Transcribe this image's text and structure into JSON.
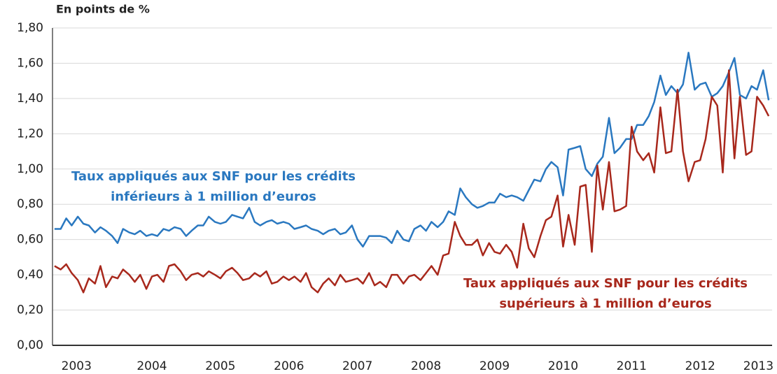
{
  "chart_data": {
    "type": "line",
    "y_label": "En points de %",
    "x": [
      2003.08,
      2003.17,
      2003.25,
      2003.33,
      2003.42,
      2003.5,
      2003.58,
      2003.67,
      2003.75,
      2003.83,
      2003.92,
      2004,
      2004.08,
      2004.17,
      2004.25,
      2004.33,
      2004.42,
      2004.5,
      2004.58,
      2004.67,
      2004.75,
      2004.83,
      2004.92,
      2005,
      2005.08,
      2005.17,
      2005.25,
      2005.33,
      2005.42,
      2005.5,
      2005.58,
      2005.67,
      2005.75,
      2005.83,
      2005.92,
      2006,
      2006.08,
      2006.17,
      2006.25,
      2006.33,
      2006.42,
      2006.5,
      2006.58,
      2006.67,
      2006.75,
      2006.83,
      2006.92,
      2007,
      2007.08,
      2007.17,
      2007.25,
      2007.33,
      2007.42,
      2007.5,
      2007.58,
      2007.67,
      2007.75,
      2007.83,
      2007.92,
      2008,
      2008.08,
      2008.17,
      2008.25,
      2008.33,
      2008.42,
      2008.5,
      2008.58,
      2008.67,
      2008.75,
      2008.83,
      2008.92,
      2009,
      2009.08,
      2009.17,
      2009.25,
      2009.33,
      2009.42,
      2009.5,
      2009.58,
      2009.67,
      2009.75,
      2009.83,
      2009.92,
      2010,
      2010.08,
      2010.17,
      2010.25,
      2010.33,
      2010.42,
      2010.5,
      2010.58,
      2010.67,
      2010.75,
      2010.83,
      2010.92,
      2011,
      2011.08,
      2011.17,
      2011.25,
      2011.33,
      2011.42,
      2011.5,
      2011.58,
      2011.67,
      2011.75,
      2011.83,
      2011.92,
      2012,
      2012.08,
      2012.17,
      2012.25,
      2012.33,
      2012.42,
      2012.5,
      2012.58,
      2012.67,
      2012.75,
      2012.83,
      2012.92,
      2013,
      2013.08,
      2013.17,
      2013.25,
      2013.33,
      2013.42,
      2013.5
    ],
    "series": [
      {
        "name": "Taux appliqués aux SNF pour les crédits inférieurs à 1 million d’euros",
        "color": "#2a78c0",
        "values": [
          0.66,
          0.66,
          0.72,
          0.68,
          0.73,
          0.69,
          0.68,
          0.64,
          0.67,
          0.65,
          0.62,
          0.58,
          0.66,
          0.64,
          0.63,
          0.65,
          0.62,
          0.63,
          0.62,
          0.66,
          0.65,
          0.67,
          0.66,
          0.62,
          0.65,
          0.68,
          0.68,
          0.73,
          0.7,
          0.69,
          0.7,
          0.74,
          0.73,
          0.72,
          0.78,
          0.7,
          0.68,
          0.7,
          0.71,
          0.69,
          0.7,
          0.69,
          0.66,
          0.67,
          0.68,
          0.66,
          0.65,
          0.63,
          0.65,
          0.66,
          0.63,
          0.64,
          0.68,
          0.6,
          0.56,
          0.62,
          0.62,
          0.62,
          0.61,
          0.58,
          0.65,
          0.6,
          0.59,
          0.66,
          0.68,
          0.65,
          0.7,
          0.67,
          0.7,
          0.76,
          0.74,
          0.89,
          0.84,
          0.8,
          0.78,
          0.79,
          0.81,
          0.81,
          0.86,
          0.84,
          0.85,
          0.84,
          0.82,
          0.88,
          0.94,
          0.93,
          1.0,
          1.04,
          1.01,
          0.85,
          1.11,
          1.12,
          1.13,
          1.0,
          0.96,
          1.03,
          1.07,
          1.29,
          1.09,
          1.12,
          1.17,
          1.17,
          1.25,
          1.25,
          1.3,
          1.38,
          1.53,
          1.42,
          1.47,
          1.43,
          1.48,
          1.66,
          1.45,
          1.48,
          1.49,
          1.41,
          1.43,
          1.47,
          1.55,
          1.63,
          1.42,
          1.4,
          1.47,
          1.45,
          1.56,
          1.39
        ]
      },
      {
        "name": "Taux appliqués aux SNF pour les crédits supérieurs à 1 million d’euros",
        "color": "#a8281c",
        "values": [
          0.45,
          0.43,
          0.46,
          0.41,
          0.37,
          0.3,
          0.38,
          0.35,
          0.45,
          0.33,
          0.39,
          0.38,
          0.43,
          0.4,
          0.36,
          0.4,
          0.32,
          0.39,
          0.4,
          0.36,
          0.45,
          0.46,
          0.42,
          0.37,
          0.4,
          0.41,
          0.39,
          0.42,
          0.4,
          0.38,
          0.42,
          0.44,
          0.41,
          0.37,
          0.38,
          0.41,
          0.39,
          0.42,
          0.35,
          0.36,
          0.39,
          0.37,
          0.39,
          0.36,
          0.41,
          0.33,
          0.3,
          0.35,
          0.38,
          0.34,
          0.4,
          0.36,
          0.37,
          0.38,
          0.35,
          0.41,
          0.34,
          0.36,
          0.33,
          0.4,
          0.4,
          0.35,
          0.39,
          0.4,
          0.37,
          0.41,
          0.45,
          0.4,
          0.51,
          0.52,
          0.7,
          0.62,
          0.57,
          0.57,
          0.6,
          0.51,
          0.58,
          0.53,
          0.52,
          0.57,
          0.53,
          0.44,
          0.69,
          0.55,
          0.5,
          0.62,
          0.71,
          0.73,
          0.85,
          0.56,
          0.74,
          0.57,
          0.9,
          0.91,
          0.53,
          1.02,
          0.77,
          1.04,
          0.76,
          0.77,
          0.79,
          1.24,
          1.1,
          1.05,
          1.09,
          0.98,
          1.35,
          1.09,
          1.1,
          1.45,
          1.1,
          0.93,
          1.04,
          1.05,
          1.17,
          1.41,
          1.36,
          0.98,
          1.56,
          1.06,
          1.41,
          1.08,
          1.1,
          1.41,
          1.36,
          1.3
        ]
      }
    ],
    "annotations": [
      {
        "lines": [
          "Taux appliqués aux SNF pour les crédits",
          "inférieurs à 1 million d’euros"
        ],
        "color": "#2a78c0"
      },
      {
        "lines": [
          "Taux appliqués aux SNF pour les crédits",
          "supérieurs à 1 million d’euros"
        ],
        "color": "#a8281c"
      }
    ],
    "xlim": [
      2003.05,
      2013.55
    ],
    "xticks": [
      {
        "value": 2003.4,
        "label": "2003"
      },
      {
        "value": 2004.5,
        "label": "2004"
      },
      {
        "value": 2005.5,
        "label": "2005"
      },
      {
        "value": 2006.5,
        "label": "2006"
      },
      {
        "value": 2007.5,
        "label": "2007"
      },
      {
        "value": 2008.5,
        "label": "2008"
      },
      {
        "value": 2009.5,
        "label": "2009"
      },
      {
        "value": 2010.5,
        "label": "2010"
      },
      {
        "value": 2011.5,
        "label": "2011"
      },
      {
        "value": 2012.5,
        "label": "2012"
      },
      {
        "value": 2013.35,
        "label": "2013"
      }
    ],
    "ylim": [
      0,
      1.8
    ],
    "yticks": [
      {
        "value": 0,
        "label": "0,00"
      },
      {
        "value": 0.2,
        "label": "0,20"
      },
      {
        "value": 0.4,
        "label": "0,40"
      },
      {
        "value": 0.6,
        "label": "0,60"
      },
      {
        "value": 0.8,
        "label": "0,80"
      },
      {
        "value": 1,
        "label": "1,00"
      },
      {
        "value": 1.2,
        "label": "1,20"
      },
      {
        "value": 1.4,
        "label": "1,40"
      },
      {
        "value": 1.6,
        "label": "1,60"
      },
      {
        "value": 1.8,
        "label": "1,80"
      }
    ],
    "grid": true
  }
}
